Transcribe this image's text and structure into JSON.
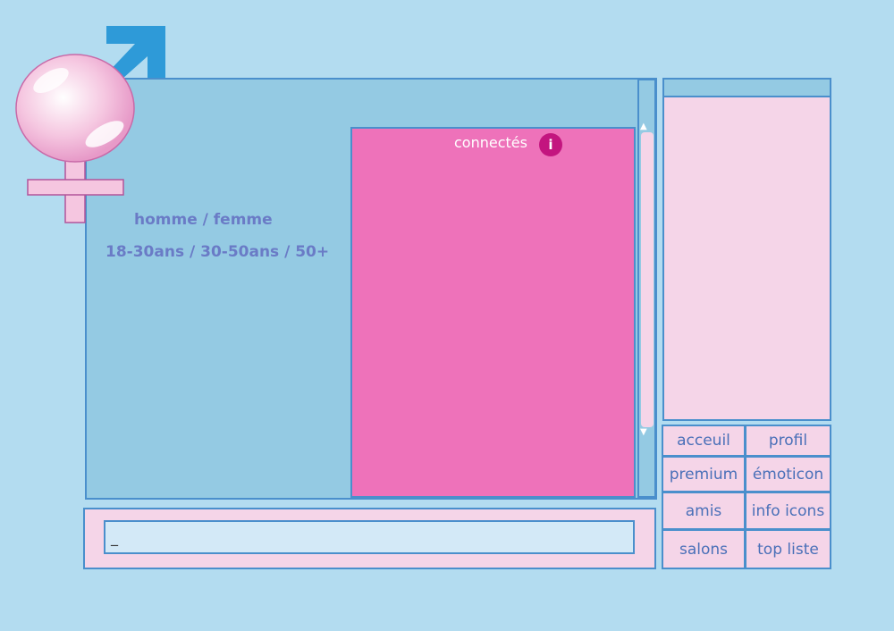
{
  "colors": {
    "background": "#b3dcf0",
    "panel": "#94cae3",
    "online": "#ee72ba",
    "pink": "#f5d5e8",
    "border": "#4a8fcc"
  },
  "logo": {
    "icon": "gender-male-female-logo"
  },
  "filters": {
    "gender": "homme / femme",
    "age": "18-30ans / 30-50ans / 50+"
  },
  "online": {
    "title": "connectés",
    "info_icon": "i"
  },
  "input": {
    "value": "_"
  },
  "menu": [
    {
      "label": "acceuil"
    },
    {
      "label": "profil"
    },
    {
      "label": "premium"
    },
    {
      "label": "émoticon"
    },
    {
      "label": "amis"
    },
    {
      "label": "info icons"
    },
    {
      "label": "salons"
    },
    {
      "label": "top liste"
    }
  ]
}
